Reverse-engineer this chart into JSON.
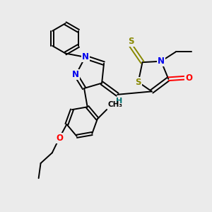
{
  "bg_color": "#ebebeb",
  "atom_colors": {
    "N": "#0000ee",
    "S": "#888800",
    "O": "#ff0000",
    "H": "#007070",
    "C": "#000000"
  },
  "bond_color": "#000000",
  "figsize": [
    3.0,
    3.0
  ],
  "dpi": 100
}
